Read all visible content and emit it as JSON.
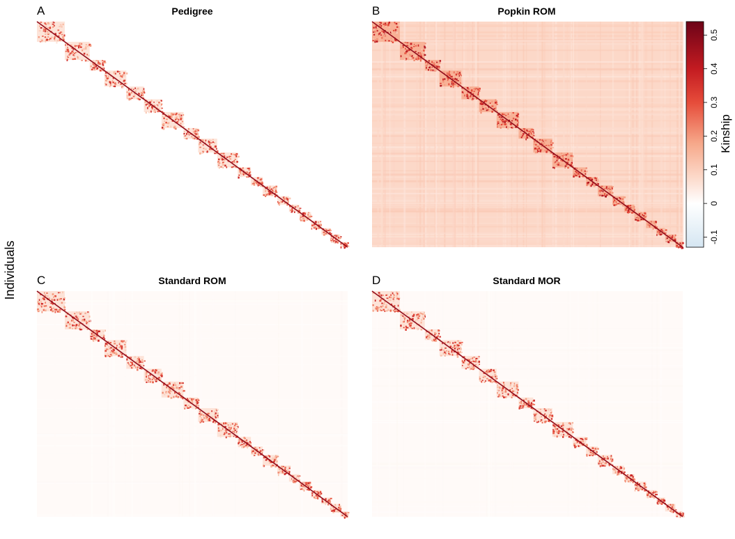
{
  "figure": {
    "ylabel": "Individuals"
  },
  "colors": {
    "background": "#ffffff",
    "panel_base": "#fdf2ee",
    "colorscale": [
      "#d5e6f2",
      "#ffffff",
      "#fcd8c8",
      "#f6a789",
      "#e64c3a",
      "#c31b21",
      "#6d0318"
    ]
  },
  "chart_data": [
    {
      "type": "heatmap",
      "panel": "A",
      "title": "Pedigree",
      "xlabel": "",
      "ylabel": "Individuals",
      "background_kinship": 0.0,
      "family_blocks": 20,
      "block_kinship_range": [
        0.05,
        0.5
      ],
      "diagonal": "strong",
      "colorbar": false
    },
    {
      "type": "heatmap",
      "panel": "B",
      "title": "Popkin ROM",
      "xlabel": "",
      "ylabel": "",
      "background_kinship": 0.08,
      "family_blocks": 20,
      "block_kinship_range": [
        0.1,
        0.55
      ],
      "diagonal": "strong",
      "colorbar": true
    },
    {
      "type": "heatmap",
      "panel": "C",
      "title": "Standard ROM",
      "xlabel": "",
      "ylabel": "",
      "background_kinship": 0.01,
      "family_blocks": 20,
      "block_kinship_range": [
        0.05,
        0.5
      ],
      "diagonal": "strong",
      "colorbar": false
    },
    {
      "type": "heatmap",
      "panel": "D",
      "title": "Standard MOR",
      "xlabel": "",
      "ylabel": "",
      "background_kinship": 0.01,
      "family_blocks": 20,
      "block_kinship_range": [
        0.05,
        0.5
      ],
      "diagonal": "strong",
      "colorbar": false
    }
  ],
  "legend": {
    "title": "Kinship",
    "range": [
      -0.13,
      0.54
    ],
    "ticks": [
      {
        "value": 0.5,
        "label": "0.5"
      },
      {
        "value": 0.4,
        "label": "0.4"
      },
      {
        "value": 0.3,
        "label": "0.3"
      },
      {
        "value": 0.2,
        "label": "0.2"
      },
      {
        "value": 0.1,
        "label": "0.1"
      },
      {
        "value": 0.0,
        "label": "0"
      },
      {
        "value": -0.1,
        "label": "-0.1"
      }
    ]
  }
}
